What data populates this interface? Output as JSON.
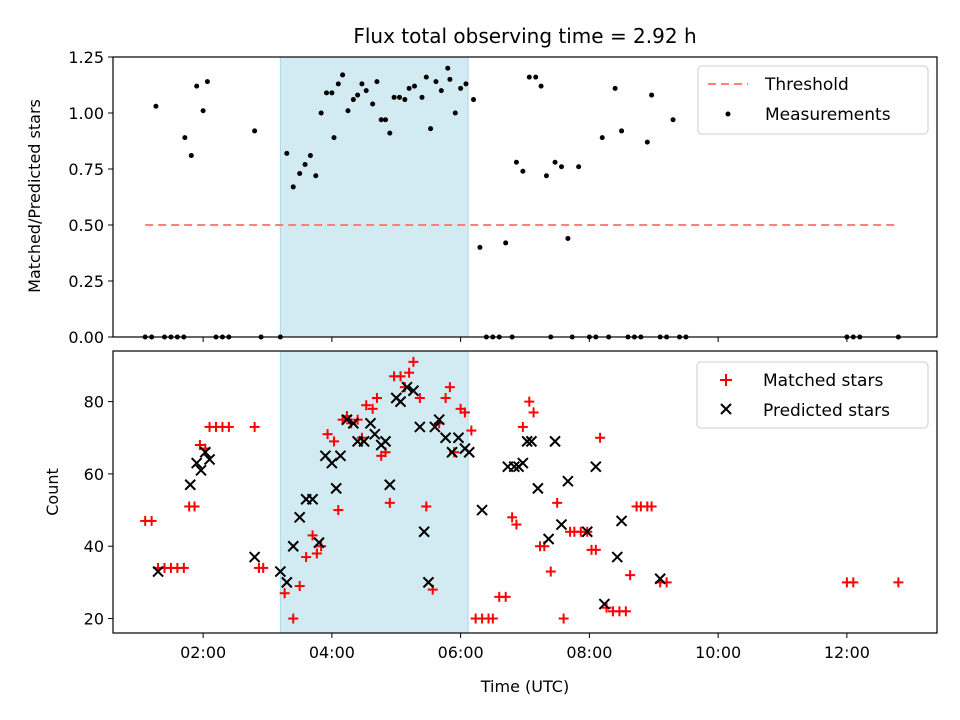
{
  "chart_data": [
    {
      "type": "scatter",
      "title": "Flux total observing time = 2.92 h",
      "ylabel": "Matched/Predicted stars",
      "xlabel": "",
      "xlim": [
        "00:36",
        "13:24"
      ],
      "ylim": [
        0,
        1.25
      ],
      "yticks": [
        "0.00",
        "0.25",
        "0.50",
        "0.75",
        "1.00",
        "1.25"
      ],
      "highlight_span": {
        "start": "03:12",
        "end": "06:07",
        "color": "#add8e6"
      },
      "legend": "top-right",
      "threshold": {
        "name": "Threshold",
        "value": 0.5,
        "x": [
          "01:06",
          "12:48"
        ],
        "color": "#ff7f7f"
      },
      "series": [
        {
          "name": "Measurements",
          "color": "#000000",
          "points": [
            [
              "01:06",
              0.0
            ],
            [
              "01:12",
              0.0
            ],
            [
              "01:16",
              1.03
            ],
            [
              "01:24",
              0.0
            ],
            [
              "01:30",
              0.0
            ],
            [
              "01:36",
              0.0
            ],
            [
              "01:42",
              0.0
            ],
            [
              "01:43",
              0.89
            ],
            [
              "01:49",
              0.81
            ],
            [
              "01:54",
              1.12
            ],
            [
              "02:00",
              1.01
            ],
            [
              "02:04",
              1.14
            ],
            [
              "02:12",
              0.0
            ],
            [
              "02:18",
              0.0
            ],
            [
              "02:24",
              0.0
            ],
            [
              "02:48",
              0.92
            ],
            [
              "02:54",
              0.0
            ],
            [
              "03:12",
              0.0
            ],
            [
              "03:18",
              0.82
            ],
            [
              "03:24",
              0.67
            ],
            [
              "03:30",
              0.73
            ],
            [
              "03:35",
              0.77
            ],
            [
              "03:40",
              0.81
            ],
            [
              "03:45",
              0.72
            ],
            [
              "03:50",
              1.0
            ],
            [
              "03:55",
              1.09
            ],
            [
              "04:00",
              1.09
            ],
            [
              "04:02",
              0.89
            ],
            [
              "04:06",
              1.13
            ],
            [
              "04:10",
              1.17
            ],
            [
              "04:15",
              1.01
            ],
            [
              "04:20",
              1.06
            ],
            [
              "04:24",
              1.08
            ],
            [
              "04:28",
              1.13
            ],
            [
              "04:32",
              1.1
            ],
            [
              "04:38",
              1.04
            ],
            [
              "04:42",
              1.14
            ],
            [
              "04:46",
              0.97
            ],
            [
              "04:50",
              0.97
            ],
            [
              "04:54",
              0.91
            ],
            [
              "04:58",
              1.07
            ],
            [
              "05:03",
              1.07
            ],
            [
              "05:08",
              1.06
            ],
            [
              "05:12",
              1.11
            ],
            [
              "05:17",
              1.12
            ],
            [
              "05:24",
              1.07
            ],
            [
              "05:28",
              1.16
            ],
            [
              "05:32",
              0.93
            ],
            [
              "05:37",
              1.14
            ],
            [
              "05:42",
              1.1
            ],
            [
              "05:48",
              1.2
            ],
            [
              "05:50",
              1.15
            ],
            [
              "05:55",
              1.0
            ],
            [
              "06:00",
              1.11
            ],
            [
              "06:05",
              1.13
            ],
            [
              "06:12",
              1.06
            ],
            [
              "06:18",
              0.4
            ],
            [
              "06:24",
              0.0
            ],
            [
              "06:30",
              0.0
            ],
            [
              "06:36",
              0.0
            ],
            [
              "06:42",
              0.42
            ],
            [
              "06:48",
              0.0
            ],
            [
              "06:52",
              0.78
            ],
            [
              "06:58",
              0.74
            ],
            [
              "07:04",
              1.16
            ],
            [
              "07:10",
              1.16
            ],
            [
              "07:15",
              1.12
            ],
            [
              "07:20",
              0.72
            ],
            [
              "07:24",
              0.0
            ],
            [
              "07:28",
              0.78
            ],
            [
              "07:34",
              0.76
            ],
            [
              "07:40",
              0.44
            ],
            [
              "07:44",
              0.0
            ],
            [
              "07:50",
              0.76
            ],
            [
              "08:00",
              0.0
            ],
            [
              "08:06",
              0.0
            ],
            [
              "08:12",
              0.89
            ],
            [
              "08:18",
              0.0
            ],
            [
              "08:24",
              1.11
            ],
            [
              "08:30",
              0.92
            ],
            [
              "08:36",
              0.0
            ],
            [
              "08:42",
              0.0
            ],
            [
              "08:48",
              0.0
            ],
            [
              "08:54",
              0.87
            ],
            [
              "08:58",
              1.08
            ],
            [
              "09:06",
              0.0
            ],
            [
              "09:12",
              0.0
            ],
            [
              "09:18",
              0.97
            ],
            [
              "09:24",
              0.0
            ],
            [
              "09:30",
              0.0
            ],
            [
              "12:00",
              0.0
            ],
            [
              "12:06",
              0.0
            ],
            [
              "12:12",
              0.0
            ],
            [
              "12:48",
              0.0
            ]
          ]
        }
      ]
    },
    {
      "type": "scatter",
      "title": "",
      "xlabel": "Time (UTC)",
      "ylabel": "Count",
      "xlim": [
        "00:36",
        "13:24"
      ],
      "ylim": [
        16,
        94
      ],
      "yticks": [
        "20",
        "40",
        "60",
        "80"
      ],
      "xticks": [
        "02:00",
        "04:00",
        "06:00",
        "08:00",
        "10:00",
        "12:00"
      ],
      "highlight_span": {
        "start": "03:12",
        "end": "06:07",
        "color": "#add8e6"
      },
      "legend": "top-right",
      "series": [
        {
          "name": "Matched stars",
          "marker": "plus",
          "color": "#ff0000",
          "points": [
            [
              "01:06",
              47
            ],
            [
              "01:12",
              47
            ],
            [
              "01:18",
              34
            ],
            [
              "01:24",
              34
            ],
            [
              "01:30",
              34
            ],
            [
              "01:36",
              34
            ],
            [
              "01:42",
              34
            ],
            [
              "01:47",
              51
            ],
            [
              "01:52",
              51
            ],
            [
              "01:57",
              68
            ],
            [
              "02:02",
              67
            ],
            [
              "02:06",
              73
            ],
            [
              "02:12",
              73
            ],
            [
              "02:18",
              73
            ],
            [
              "02:24",
              73
            ],
            [
              "02:48",
              73
            ],
            [
              "02:52",
              34
            ],
            [
              "02:56",
              34
            ],
            [
              "03:16",
              27
            ],
            [
              "03:24",
              20
            ],
            [
              "03:30",
              29
            ],
            [
              "03:36",
              37
            ],
            [
              "03:42",
              43
            ],
            [
              "03:46",
              38
            ],
            [
              "03:50",
              40
            ],
            [
              "03:56",
              71
            ],
            [
              "04:02",
              69
            ],
            [
              "04:06",
              50
            ],
            [
              "04:10",
              75
            ],
            [
              "04:14",
              76
            ],
            [
              "04:18",
              74
            ],
            [
              "04:24",
              75
            ],
            [
              "04:28",
              70
            ],
            [
              "04:32",
              79
            ],
            [
              "04:38",
              78
            ],
            [
              "04:42",
              81
            ],
            [
              "04:46",
              65
            ],
            [
              "04:50",
              66
            ],
            [
              "04:54",
              52
            ],
            [
              "04:58",
              87
            ],
            [
              "05:04",
              87
            ],
            [
              "05:08",
              84
            ],
            [
              "05:12",
              88
            ],
            [
              "05:16",
              91
            ],
            [
              "05:22",
              81
            ],
            [
              "05:28",
              51
            ],
            [
              "05:34",
              28
            ],
            [
              "05:40",
              74
            ],
            [
              "05:46",
              81
            ],
            [
              "05:50",
              84
            ],
            [
              "05:54",
              66
            ],
            [
              "06:00",
              78
            ],
            [
              "06:04",
              77
            ],
            [
              "06:10",
              72
            ],
            [
              "06:14",
              20
            ],
            [
              "06:20",
              20
            ],
            [
              "06:26",
              20
            ],
            [
              "06:30",
              20
            ],
            [
              "06:36",
              26
            ],
            [
              "06:42",
              26
            ],
            [
              "06:48",
              48
            ],
            [
              "06:52",
              46
            ],
            [
              "06:58",
              73
            ],
            [
              "07:04",
              80
            ],
            [
              "07:08",
              77
            ],
            [
              "07:14",
              40
            ],
            [
              "07:18",
              40
            ],
            [
              "07:24",
              33
            ],
            [
              "07:30",
              52
            ],
            [
              "07:36",
              20
            ],
            [
              "07:42",
              44
            ],
            [
              "07:46",
              44
            ],
            [
              "07:52",
              44
            ],
            [
              "07:58",
              44
            ],
            [
              "08:02",
              39
            ],
            [
              "08:06",
              39
            ],
            [
              "08:10",
              70
            ],
            [
              "08:16",
              23
            ],
            [
              "08:22",
              22
            ],
            [
              "08:28",
              22
            ],
            [
              "08:34",
              22
            ],
            [
              "08:38",
              32
            ],
            [
              "08:44",
              51
            ],
            [
              "08:48",
              51
            ],
            [
              "08:54",
              51
            ],
            [
              "08:58",
              51
            ],
            [
              "09:06",
              30
            ],
            [
              "09:12",
              30
            ],
            [
              "12:00",
              30
            ],
            [
              "12:06",
              30
            ],
            [
              "12:48",
              30
            ]
          ]
        },
        {
          "name": "Predicted stars",
          "marker": "x",
          "color": "#000000",
          "points": [
            [
              "01:18",
              33
            ],
            [
              "01:48",
              57
            ],
            [
              "01:54",
              63
            ],
            [
              "01:58",
              61
            ],
            [
              "02:02",
              66
            ],
            [
              "02:06",
              64
            ],
            [
              "02:48",
              37
            ],
            [
              "03:12",
              33
            ],
            [
              "03:18",
              30
            ],
            [
              "03:24",
              40
            ],
            [
              "03:30",
              48
            ],
            [
              "03:36",
              53
            ],
            [
              "03:42",
              53
            ],
            [
              "03:48",
              41
            ],
            [
              "03:54",
              65
            ],
            [
              "04:00",
              63
            ],
            [
              "04:04",
              56
            ],
            [
              "04:08",
              65
            ],
            [
              "04:14",
              75
            ],
            [
              "04:20",
              74
            ],
            [
              "04:24",
              69
            ],
            [
              "04:30",
              69
            ],
            [
              "04:36",
              74
            ],
            [
              "04:40",
              71
            ],
            [
              "04:46",
              68
            ],
            [
              "04:50",
              69
            ],
            [
              "04:54",
              57
            ],
            [
              "05:00",
              81
            ],
            [
              "05:04",
              80
            ],
            [
              "05:10",
              84
            ],
            [
              "05:16",
              83
            ],
            [
              "05:22",
              73
            ],
            [
              "05:26",
              44
            ],
            [
              "05:30",
              30
            ],
            [
              "05:36",
              73
            ],
            [
              "05:40",
              75
            ],
            [
              "05:46",
              70
            ],
            [
              "05:52",
              66
            ],
            [
              "05:58",
              70
            ],
            [
              "06:04",
              67
            ],
            [
              "06:08",
              66
            ],
            [
              "06:20",
              50
            ],
            [
              "06:44",
              62
            ],
            [
              "06:50",
              62
            ],
            [
              "06:54",
              62
            ],
            [
              "06:58",
              63
            ],
            [
              "07:02",
              69
            ],
            [
              "07:06",
              69
            ],
            [
              "07:12",
              56
            ],
            [
              "07:22",
              42
            ],
            [
              "07:28",
              69
            ],
            [
              "07:34",
              46
            ],
            [
              "07:40",
              58
            ],
            [
              "07:58",
              44
            ],
            [
              "08:06",
              62
            ],
            [
              "08:14",
              24
            ],
            [
              "08:26",
              37
            ],
            [
              "08:30",
              47
            ],
            [
              "09:06",
              31
            ]
          ]
        }
      ]
    }
  ]
}
